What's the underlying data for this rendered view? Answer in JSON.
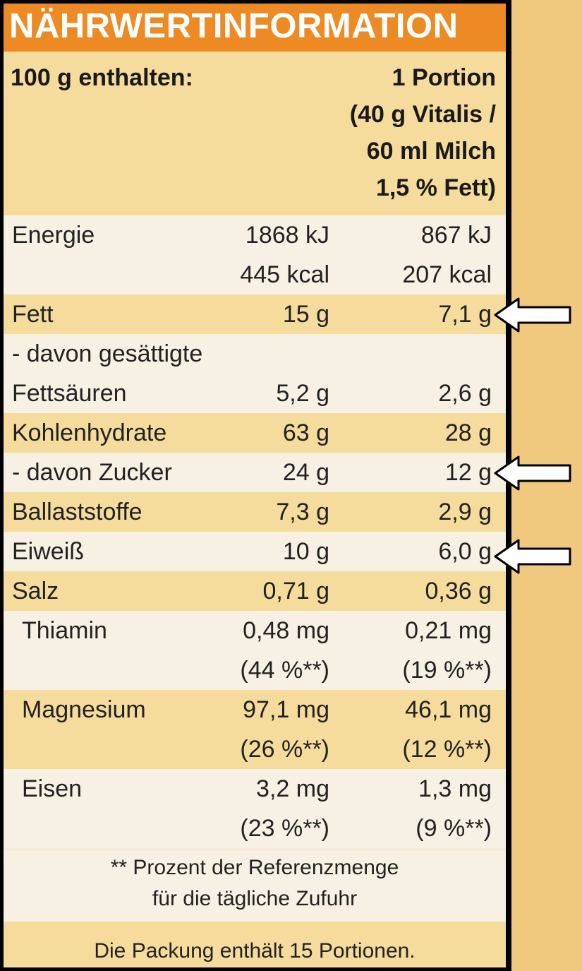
{
  "header": {
    "title": "NÄHRWERTINFORMATION",
    "left": "100 g enthalten:",
    "right": [
      "1 Portion",
      "(40 g Vitalis /",
      "60 ml Milch",
      "1,5 % Fett)"
    ]
  },
  "table": {
    "rows": [
      {
        "label": [
          "Energie"
        ],
        "per_100g": [
          "1868 kJ",
          "445 kcal"
        ],
        "per_portion": [
          "867 kJ",
          "207 kcal"
        ]
      },
      {
        "label": [
          "Fett"
        ],
        "per_100g": [
          "15 g"
        ],
        "per_portion": [
          "7,1 g"
        ]
      },
      {
        "label": [
          "- davon gesättigte",
          "Fettsäuren"
        ],
        "per_100g": [
          "5,2 g"
        ],
        "per_portion": [
          "2,6 g"
        ]
      },
      {
        "label": [
          "Kohlenhydrate"
        ],
        "per_100g": [
          "63 g"
        ],
        "per_portion": [
          "28 g"
        ]
      },
      {
        "label": [
          "- davon Zucker"
        ],
        "per_100g": [
          "24 g"
        ],
        "per_portion": [
          "12 g"
        ]
      },
      {
        "label": [
          "Ballaststoffe"
        ],
        "per_100g": [
          "7,3 g"
        ],
        "per_portion": [
          "2,9 g"
        ]
      },
      {
        "label": [
          "Eiweiß"
        ],
        "per_100g": [
          "10 g"
        ],
        "per_portion": [
          "6,0 g"
        ]
      },
      {
        "label": [
          "Salz"
        ],
        "per_100g": [
          "0,71 g"
        ],
        "per_portion": [
          "0,36 g"
        ]
      },
      {
        "label": [
          "Thiamin"
        ],
        "per_100g": [
          "0,48 mg",
          "(44 %**)"
        ],
        "per_portion": [
          "0,21 mg",
          "(19 %**)"
        ]
      },
      {
        "label": [
          "Magnesium"
        ],
        "per_100g": [
          "97,1 mg",
          "(26 %**)"
        ],
        "per_portion": [
          "46,1 mg",
          "(12 %**)"
        ]
      },
      {
        "label": [
          "Eisen"
        ],
        "per_100g": [
          "3,2 mg",
          "(23 %**)"
        ],
        "per_portion": [
          "1,3 mg",
          "(9 %**)"
        ]
      }
    ]
  },
  "footnote": [
    "** Prozent der Referenzmenge",
    "für die tägliche Zufuhr"
  ],
  "package_note": "Die Packung enthält 15 Portionen."
}
